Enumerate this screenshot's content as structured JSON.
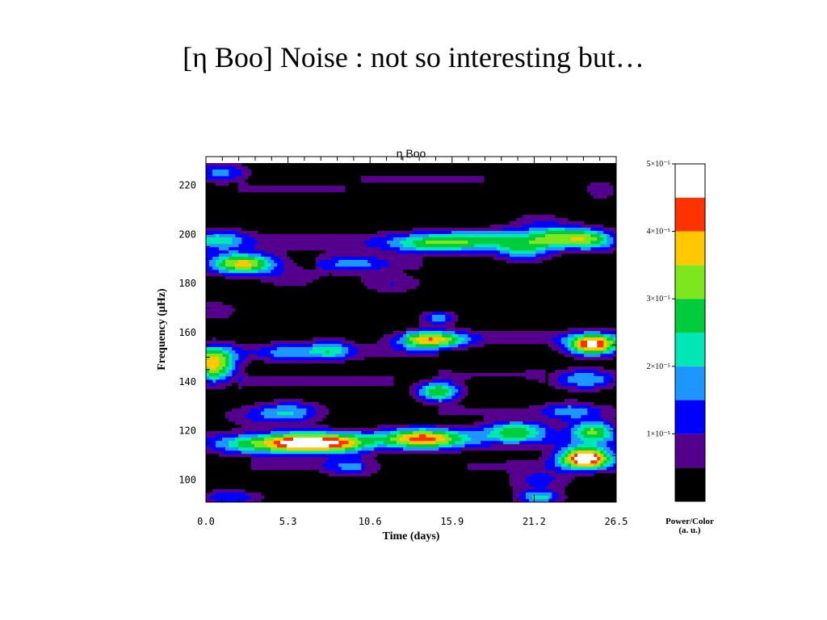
{
  "slide": {
    "title": "[η Boo] Noise : not so interesting but…"
  },
  "chart_data": {
    "type": "heatmap",
    "title": "η Boo",
    "xlabel": "Time (days)",
    "ylabel": "Frequency (μHz)",
    "xlim": [
      0.0,
      26.5
    ],
    "ylim": [
      91,
      229
    ],
    "x_ticks": [
      0.0,
      5.3,
      10.6,
      15.9,
      21.2,
      26.5
    ],
    "x_tick_labels": [
      "0.0",
      "5.3",
      "10.6",
      "15.9",
      "21.2",
      "26.5"
    ],
    "y_ticks": [
      100,
      120,
      140,
      160,
      180,
      200,
      220
    ],
    "y_tick_labels": [
      "100",
      "120",
      "140",
      "160",
      "180",
      "200",
      "220"
    ],
    "colorbar": {
      "title_line1": "Power/Color",
      "title_line2": "(a. u.)",
      "tick_values": [
        1,
        2,
        3,
        4,
        5
      ],
      "tick_labels": [
        "1×10⁻⁵",
        "2×10⁻⁵",
        "3×10⁻⁵",
        "4×10⁻⁵",
        "5×10⁻⁵"
      ],
      "levels": [
        {
          "min": 0.0,
          "max": 0.5,
          "color": "#000000"
        },
        {
          "min": 0.5,
          "max": 1.0,
          "color": "#55008c"
        },
        {
          "min": 1.0,
          "max": 1.5,
          "color": "#0000ff"
        },
        {
          "min": 1.5,
          "max": 2.0,
          "color": "#1e96ff"
        },
        {
          "min": 2.0,
          "max": 2.5,
          "color": "#00e6b4"
        },
        {
          "min": 2.5,
          "max": 3.0,
          "color": "#00cc3c"
        },
        {
          "min": 3.0,
          "max": 3.5,
          "color": "#7de61e"
        },
        {
          "min": 3.5,
          "max": 4.0,
          "color": "#ffc800"
        },
        {
          "min": 4.0,
          "max": 4.5,
          "color": "#ff3200"
        },
        {
          "min": 4.5,
          "max": 5.0,
          "color": "#ffffff"
        }
      ]
    },
    "peaks": [
      {
        "t": 0.5,
        "f": 147,
        "power": 3.7,
        "dt": 1.0,
        "df": 5
      },
      {
        "t": 2.3,
        "f": 188,
        "power": 3.7,
        "dt": 1.6,
        "df": 3
      },
      {
        "t": 1.0,
        "f": 225,
        "power": 1.7,
        "dt": 1.2,
        "df": 3
      },
      {
        "t": 0.8,
        "f": 198,
        "power": 1.6,
        "dt": 1.2,
        "df": 3
      },
      {
        "t": 0.5,
        "f": 169,
        "power": 0.9,
        "dt": 1.2,
        "df": 3
      },
      {
        "t": 2.5,
        "f": 114,
        "power": 1.6,
        "dt": 1.6,
        "df": 3
      },
      {
        "t": 1.5,
        "f": 93,
        "power": 1.5,
        "dt": 1.5,
        "df": 2
      },
      {
        "t": 3.5,
        "f": 126,
        "power": 0.9,
        "dt": 2.0,
        "df": 3
      },
      {
        "t": 6.2,
        "f": 115,
        "power": 4.3,
        "dt": 1.8,
        "df": 3
      },
      {
        "t": 5.5,
        "f": 128,
        "power": 1.6,
        "dt": 1.5,
        "df": 3
      },
      {
        "t": 8.0,
        "f": 153,
        "power": 1.8,
        "dt": 1.0,
        "df": 3
      },
      {
        "t": 5.2,
        "f": 152,
        "power": 1.2,
        "dt": 1.2,
        "df": 3
      },
      {
        "t": 9.0,
        "f": 115,
        "power": 2.0,
        "dt": 1.3,
        "df": 3
      },
      {
        "t": 9.5,
        "f": 105,
        "power": 1.2,
        "dt": 1.3,
        "df": 3
      },
      {
        "t": 9.5,
        "f": 188,
        "power": 1.2,
        "dt": 1.5,
        "df": 3
      },
      {
        "t": 12.0,
        "f": 180,
        "power": 1.0,
        "dt": 1.5,
        "df": 3
      },
      {
        "t": 5.5,
        "f": 182,
        "power": 0.8,
        "dt": 1.5,
        "df": 3
      },
      {
        "t": 14.5,
        "f": 157,
        "power": 3.3,
        "dt": 1.6,
        "df": 2.5
      },
      {
        "t": 15.0,
        "f": 166,
        "power": 1.8,
        "dt": 0.8,
        "df": 2
      },
      {
        "t": 14.0,
        "f": 117,
        "power": 3.6,
        "dt": 2.0,
        "df": 3
      },
      {
        "t": 15.0,
        "f": 136,
        "power": 3.0,
        "dt": 1.0,
        "df": 3
      },
      {
        "t": 14.5,
        "f": 196,
        "power": 1.8,
        "dt": 2.0,
        "df": 3
      },
      {
        "t": 18.0,
        "f": 198,
        "power": 1.6,
        "dt": 2.5,
        "df": 3
      },
      {
        "t": 20.0,
        "f": 120,
        "power": 2.6,
        "dt": 1.5,
        "df": 3
      },
      {
        "t": 21.5,
        "f": 100,
        "power": 1.2,
        "dt": 1.5,
        "df": 3
      },
      {
        "t": 21.5,
        "f": 93,
        "power": 2.2,
        "dt": 1.0,
        "df": 2
      },
      {
        "t": 23.0,
        "f": 199,
        "power": 2.3,
        "dt": 1.5,
        "df": 3
      },
      {
        "t": 20.5,
        "f": 193,
        "power": 1.8,
        "dt": 1.2,
        "df": 3
      },
      {
        "t": 25.0,
        "f": 198,
        "power": 1.5,
        "dt": 1.0,
        "df": 3
      },
      {
        "t": 25.0,
        "f": 155,
        "power": 4.4,
        "dt": 1.2,
        "df": 3
      },
      {
        "t": 24.5,
        "f": 109,
        "power": 4.9,
        "dt": 1.2,
        "df": 3
      },
      {
        "t": 25.0,
        "f": 120,
        "power": 2.8,
        "dt": 1.0,
        "df": 3
      },
      {
        "t": 24.5,
        "f": 141,
        "power": 2.0,
        "dt": 1.5,
        "df": 3
      },
      {
        "t": 23.5,
        "f": 128,
        "power": 1.3,
        "dt": 1.2,
        "df": 3
      },
      {
        "t": 21.5,
        "f": 205,
        "power": 0.8,
        "dt": 1.5,
        "df": 3
      },
      {
        "t": 25.5,
        "f": 218,
        "power": 0.9,
        "dt": 0.8,
        "df": 3
      }
    ],
    "ridges": [
      {
        "t0": 0.0,
        "t1": 26.5,
        "f": 197,
        "power": 0.8,
        "df": 3
      },
      {
        "t0": 0.0,
        "t1": 26.5,
        "f": 116,
        "power": 0.75,
        "df": 3
      },
      {
        "t0": 0.0,
        "t1": 15.0,
        "f": 152,
        "power": 0.7,
        "df": 2.5
      },
      {
        "t0": 13.0,
        "t1": 26.5,
        "f": 158,
        "power": 0.7,
        "df": 2.5
      },
      {
        "t0": 2.0,
        "t1": 12.0,
        "f": 140,
        "power": 0.7,
        "df": 2
      },
      {
        "t0": 15.0,
        "t1": 26.5,
        "f": 128,
        "power": 0.6,
        "df": 2
      },
      {
        "t0": 3.0,
        "t1": 10.0,
        "f": 106,
        "power": 0.6,
        "df": 2
      },
      {
        "t0": 17.0,
        "t1": 26.5,
        "f": 106,
        "power": 0.6,
        "df": 2
      },
      {
        "t0": 7.0,
        "t1": 14.0,
        "f": 188,
        "power": 0.6,
        "df": 2
      },
      {
        "t0": 15.0,
        "t1": 22.0,
        "f": 143,
        "power": 0.55,
        "df": 2
      },
      {
        "t0": 2.0,
        "t1": 9.0,
        "f": 218,
        "power": 0.6,
        "df": 2
      },
      {
        "t0": 10.0,
        "t1": 18.0,
        "f": 222,
        "power": 0.6,
        "df": 2
      }
    ]
  }
}
